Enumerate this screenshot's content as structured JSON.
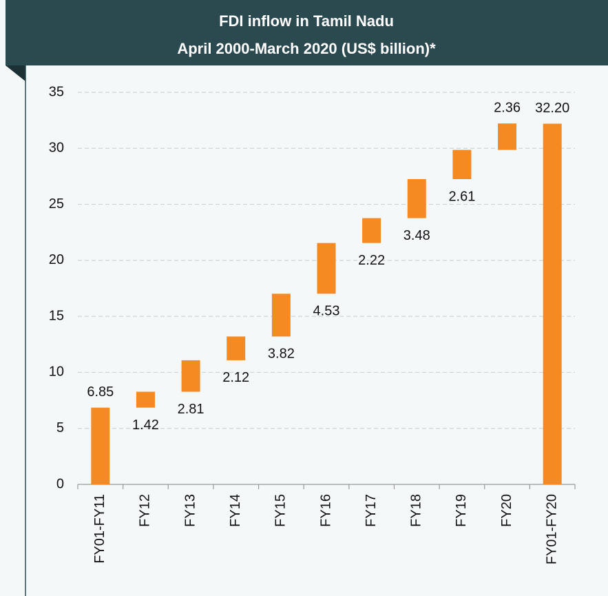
{
  "chart_data": {
    "type": "waterfall",
    "title": "FDI inflow in Tamil Nadu",
    "subtitle": "April 2000-March 2020 (US$ billion)*",
    "categories": [
      "FY01-FY11",
      "FY12",
      "FY13",
      "FY14",
      "FY15",
      "FY16",
      "FY17",
      "FY18",
      "FY19",
      "FY20",
      "FY01-FY20"
    ],
    "values": [
      6.85,
      1.42,
      2.81,
      2.12,
      3.82,
      4.53,
      2.22,
      3.48,
      2.61,
      2.36,
      32.2
    ],
    "value_labels": [
      "6.85",
      "1.42",
      "2.81",
      "2.12",
      "3.82",
      "4.53",
      "2.22",
      "3.48",
      "2.61",
      "2.36",
      "32.20"
    ],
    "measure": [
      "relative",
      "relative",
      "relative",
      "relative",
      "relative",
      "relative",
      "relative",
      "relative",
      "relative",
      "relative",
      "total"
    ],
    "label_position": [
      "above",
      "below",
      "below",
      "below",
      "below",
      "below",
      "below",
      "below",
      "below",
      "above",
      "above"
    ],
    "color": "#f58a23",
    "ylim": [
      0,
      35
    ],
    "yticks": [
      0,
      5,
      10,
      15,
      20,
      25,
      30,
      35
    ],
    "grid": true
  }
}
